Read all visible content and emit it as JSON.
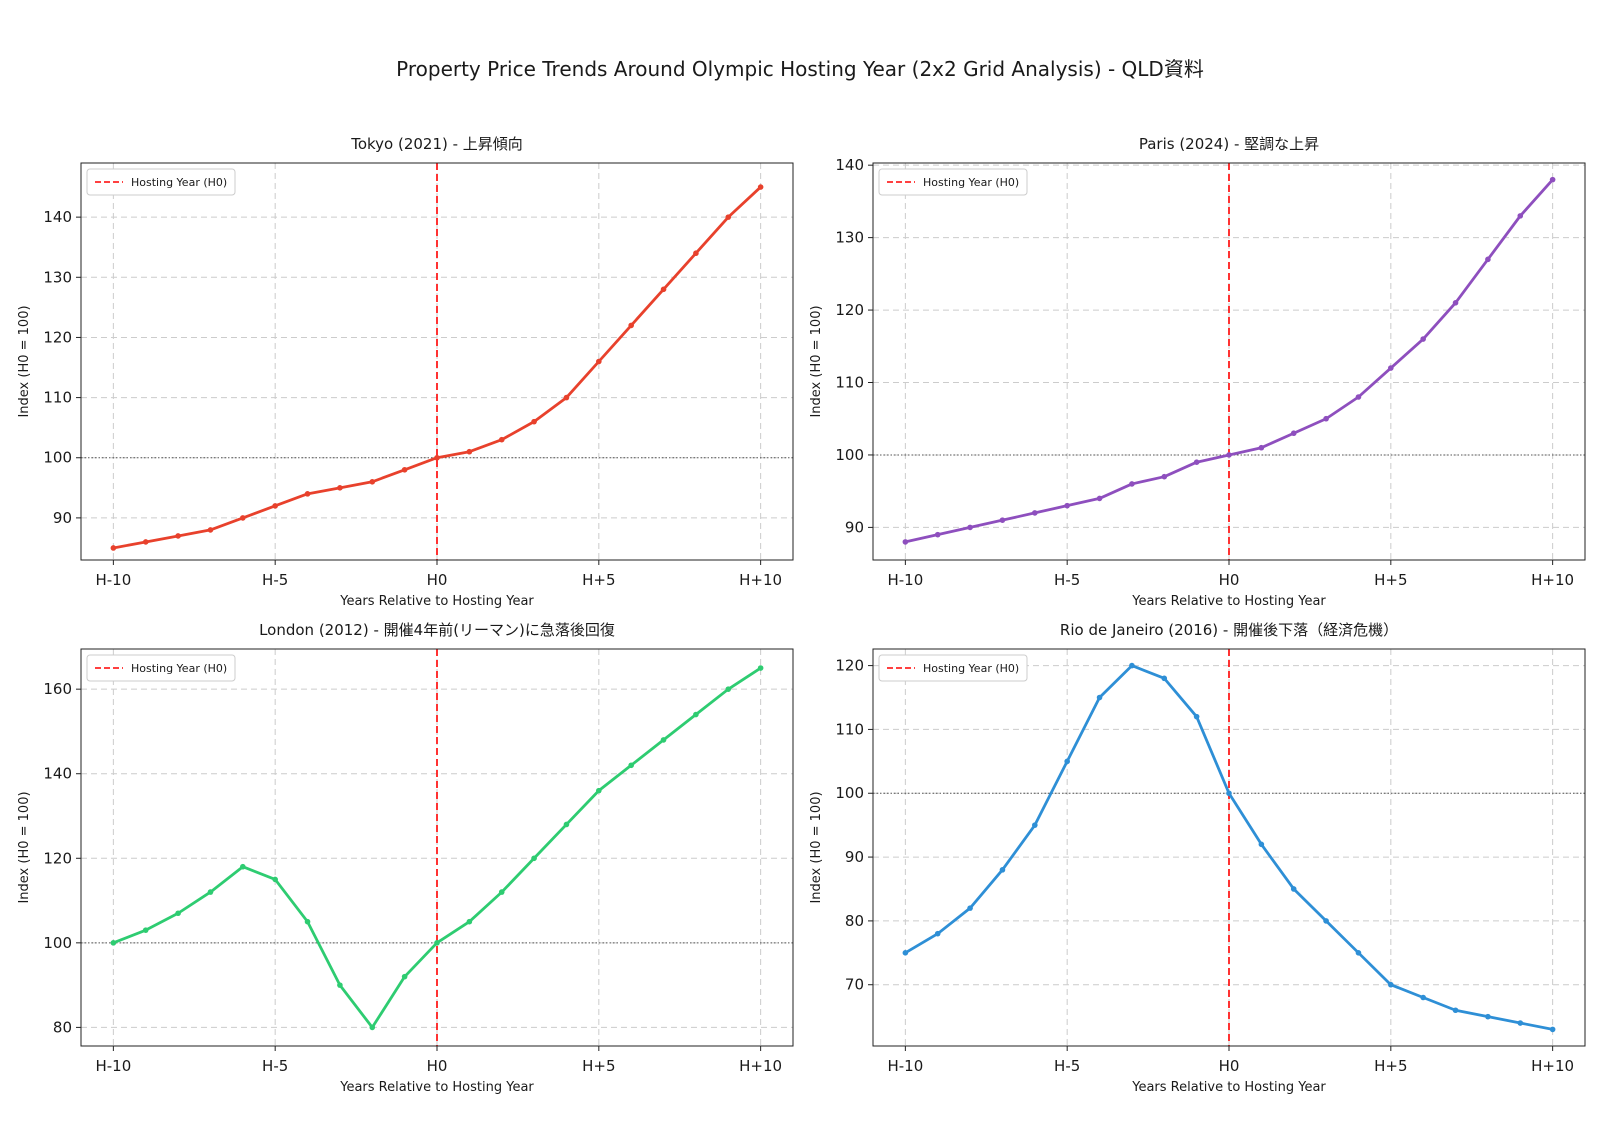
{
  "figure": {
    "title": "Property Price Trends Around Olympic Hosting Year (2x2 Grid Analysis) - QLD資料"
  },
  "chart_data": [
    {
      "type": "line",
      "title": "Tokyo (2021) - 上昇傾向",
      "xlabel": "Years Relative to Hosting Year",
      "ylabel": "Index (H0 = 100)",
      "x": [
        -10,
        -9,
        -8,
        -7,
        -6,
        -5,
        -4,
        -3,
        -2,
        -1,
        0,
        1,
        2,
        3,
        4,
        5,
        6,
        7,
        8,
        9,
        10
      ],
      "x_ticks": [
        -10,
        -5,
        0,
        5,
        10
      ],
      "x_tick_labels": [
        "H-10",
        "H-5",
        "H0",
        "H+5",
        "H+10"
      ],
      "xlim": [
        -11,
        11
      ],
      "y_ticks": [
        90,
        100,
        110,
        120,
        130,
        140
      ],
      "ylim": [
        83,
        149
      ],
      "series": [
        {
          "color": "#e8412c",
          "values": [
            85,
            86,
            87,
            88,
            90,
            92,
            94,
            95,
            96,
            98,
            100,
            101,
            103,
            106,
            110,
            116,
            122,
            128,
            134,
            140,
            145
          ]
        }
      ],
      "vline": {
        "x": 0,
        "label": "Hosting Year (H0)",
        "color": "#ff0000"
      },
      "hline": {
        "y": 100
      },
      "legend": "top-left",
      "grid": true
    },
    {
      "type": "line",
      "title": "Paris (2024) - 堅調な上昇",
      "xlabel": "Years Relative to Hosting Year",
      "ylabel": "Index (H0 = 100)",
      "x": [
        -10,
        -9,
        -8,
        -7,
        -6,
        -5,
        -4,
        -3,
        -2,
        -1,
        0,
        1,
        2,
        3,
        4,
        5,
        6,
        7,
        8,
        9,
        10
      ],
      "x_ticks": [
        -10,
        -5,
        0,
        5,
        10
      ],
      "x_tick_labels": [
        "H-10",
        "H-5",
        "H0",
        "H+5",
        "H+10"
      ],
      "xlim": [
        -11,
        11
      ],
      "y_ticks": [
        90,
        100,
        110,
        120,
        130,
        140
      ],
      "ylim": [
        85.5,
        140.3
      ],
      "series": [
        {
          "color": "#8e4fbe",
          "values": [
            88,
            89,
            90,
            91,
            92,
            93,
            94,
            96,
            97,
            99,
            100,
            101,
            103,
            105,
            108,
            112,
            116,
            121,
            127,
            133,
            138
          ]
        }
      ],
      "vline": {
        "x": 0,
        "label": "Hosting Year (H0)",
        "color": "#ff0000"
      },
      "hline": {
        "y": 100
      },
      "legend": "top-left",
      "grid": true
    },
    {
      "type": "line",
      "title": "London (2012) - 開催4年前(リーマン)に急落後回復",
      "xlabel": "Years Relative to Hosting Year",
      "ylabel": "Index (H0 = 100)",
      "x": [
        -10,
        -9,
        -8,
        -7,
        -6,
        -5,
        -4,
        -3,
        -2,
        -1,
        0,
        1,
        2,
        3,
        4,
        5,
        6,
        7,
        8,
        9,
        10
      ],
      "x_ticks": [
        -10,
        -5,
        0,
        5,
        10
      ],
      "x_tick_labels": [
        "H-10",
        "H-5",
        "H0",
        "H+5",
        "H+10"
      ],
      "xlim": [
        -11,
        11
      ],
      "y_ticks": [
        80,
        100,
        120,
        140,
        160
      ],
      "ylim": [
        75.6,
        169.5
      ],
      "series": [
        {
          "color": "#2ecc71",
          "values": [
            100,
            103,
            107,
            112,
            118,
            115,
            105,
            90,
            80,
            92,
            100,
            105,
            112,
            120,
            128,
            136,
            142,
            148,
            154,
            160,
            165
          ]
        }
      ],
      "vline": {
        "x": 0,
        "label": "Hosting Year (H0)",
        "color": "#ff0000"
      },
      "hline": {
        "y": 100
      },
      "legend": "top-left",
      "grid": true
    },
    {
      "type": "line",
      "title": "Rio de Janeiro (2016) - 開催後下落（経済危機）",
      "xlabel": "Years Relative to Hosting Year",
      "ylabel": "Index (H0 = 100)",
      "x": [
        -10,
        -9,
        -8,
        -7,
        -6,
        -5,
        -4,
        -3,
        -2,
        -1,
        0,
        1,
        2,
        3,
        4,
        5,
        6,
        7,
        8,
        9,
        10
      ],
      "x_ticks": [
        -10,
        -5,
        0,
        5,
        10
      ],
      "x_tick_labels": [
        "H-10",
        "H-5",
        "H0",
        "H+5",
        "H+10"
      ],
      "xlim": [
        -11,
        11
      ],
      "y_ticks": [
        70,
        80,
        90,
        100,
        110,
        120
      ],
      "ylim": [
        60.4,
        122.6
      ],
      "series": [
        {
          "color": "#2e8fd6",
          "values": [
            75,
            78,
            82,
            88,
            95,
            105,
            115,
            120,
            118,
            112,
            100,
            92,
            85,
            80,
            75,
            70,
            68,
            66,
            65,
            64,
            63
          ]
        }
      ],
      "vline": {
        "x": 0,
        "label": "Hosting Year (H0)",
        "color": "#ff0000"
      },
      "hline": {
        "y": 100
      },
      "legend": "top-left",
      "grid": true
    }
  ]
}
